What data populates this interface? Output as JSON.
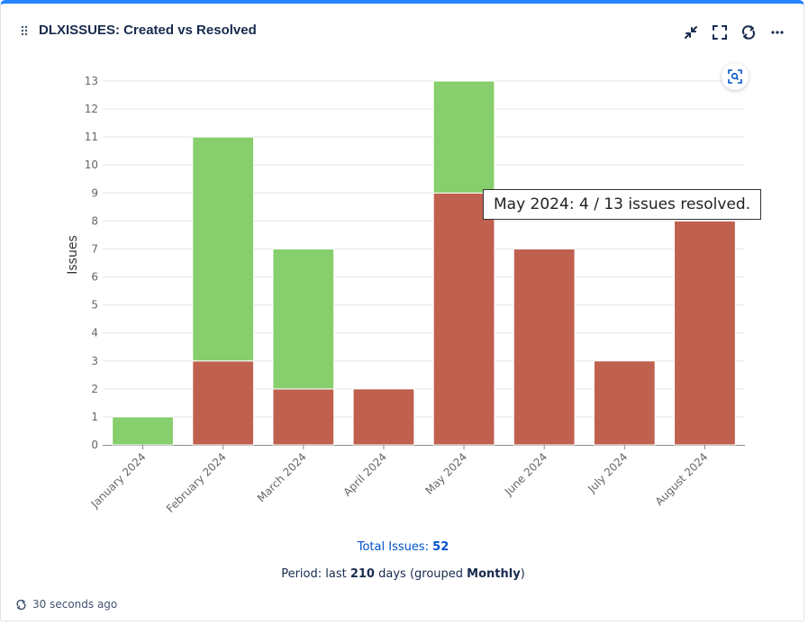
{
  "gadget": {
    "title": "DLXISSUES: Created vs Resolved"
  },
  "header_icons": [
    "collapse-icon",
    "fullscreen-icon",
    "refresh-icon",
    "more-icon"
  ],
  "colors": {
    "created": "#c0604f",
    "resolved": "#87ce6c",
    "accent": "#2684ff",
    "link": "#0052cc"
  },
  "chart_data": {
    "type": "bar",
    "stacked": true,
    "categories": [
      "January 2024",
      "February 2024",
      "March 2024",
      "April 2024",
      "May 2024",
      "June 2024",
      "July 2024",
      "August 2024"
    ],
    "series": [
      {
        "values": [
          0,
          3,
          2,
          2,
          9,
          7,
          3,
          8
        ],
        "color": "#c0604f"
      },
      {
        "values": [
          1,
          8,
          5,
          0,
          4,
          0,
          0,
          0
        ],
        "color": "#87ce6c"
      }
    ],
    "ylabel": "Issues",
    "xlabel": "",
    "ylim": [
      0,
      13
    ],
    "yticks": [
      0,
      1,
      2,
      3,
      4,
      5,
      6,
      7,
      8,
      9,
      10,
      11,
      12,
      13
    ],
    "grid": true,
    "tooltip": {
      "month": "May 2024",
      "resolved": "4",
      "total": "13",
      "suffix": "issues resolved."
    }
  },
  "footer": {
    "total_label": "Total Issues:",
    "total_value": "52",
    "period_prefix": "Period: last",
    "period_days": "210",
    "period_mid": "days (grouped",
    "period_group": "Monthly",
    "period_suffix": ")",
    "refreshed": "30 seconds ago"
  }
}
